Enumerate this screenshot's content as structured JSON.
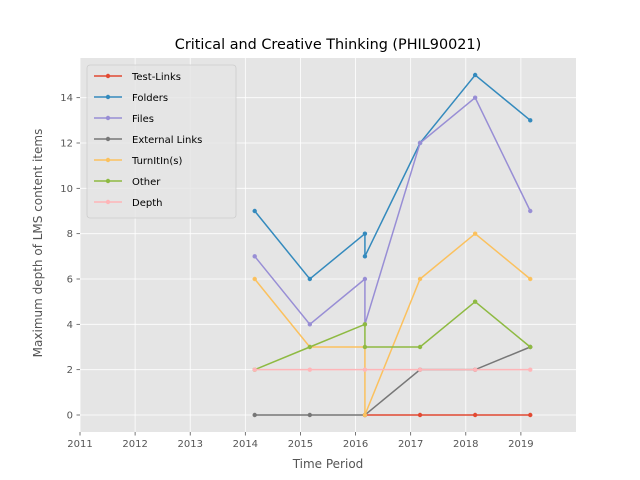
{
  "chart_data": {
    "type": "line",
    "title": "Critical and Creative Thinking (PHIL90021)",
    "xlabel": "Time Period",
    "ylabel": "Maximum depth of LMS content items",
    "xlim": [
      2011,
      2020
    ],
    "ylim": [
      -0.75,
      15.75
    ],
    "xticks": [
      2011,
      2012,
      2013,
      2014,
      2015,
      2016,
      2017,
      2018,
      2019
    ],
    "yticks": [
      0,
      2,
      4,
      6,
      8,
      10,
      12,
      14
    ],
    "grid": true,
    "legend_position": "top-left",
    "series": [
      {
        "name": "Test-Links",
        "color": "#E24A33",
        "points": [
          [
            2016.17,
            0
          ],
          [
            2017.17,
            0
          ],
          [
            2018.17,
            0
          ],
          [
            2019.17,
            0
          ]
        ]
      },
      {
        "name": "Folders",
        "color": "#348ABD",
        "points": [
          [
            2014.17,
            9
          ],
          [
            2015.17,
            6
          ],
          [
            2016.17,
            8
          ],
          [
            2016.17,
            7
          ],
          [
            2017.17,
            12
          ],
          [
            2018.17,
            15
          ],
          [
            2019.17,
            13
          ]
        ]
      },
      {
        "name": "Files",
        "color": "#988ED5",
        "points": [
          [
            2014.17,
            7
          ],
          [
            2015.17,
            4
          ],
          [
            2016.17,
            6
          ],
          [
            2016.17,
            4
          ],
          [
            2017.17,
            12
          ],
          [
            2018.17,
            14
          ],
          [
            2019.17,
            9
          ]
        ]
      },
      {
        "name": "External Links",
        "color": "#777777",
        "points": [
          [
            2014.17,
            0
          ],
          [
            2015.17,
            0
          ],
          [
            2016.17,
            0
          ],
          [
            2017.17,
            2
          ],
          [
            2018.17,
            2
          ],
          [
            2019.17,
            3
          ]
        ]
      },
      {
        "name": "TurnItIn(s)",
        "color": "#FBC15E",
        "points": [
          [
            2014.17,
            6
          ],
          [
            2015.17,
            3
          ],
          [
            2016.17,
            3
          ],
          [
            2016.17,
            0
          ],
          [
            2017.17,
            6
          ],
          [
            2018.17,
            8
          ],
          [
            2019.17,
            6
          ]
        ]
      },
      {
        "name": "Other",
        "color": "#8EBA42",
        "points": [
          [
            2014.17,
            2
          ],
          [
            2015.17,
            3
          ],
          [
            2016.17,
            4
          ],
          [
            2016.17,
            3
          ],
          [
            2017.17,
            3
          ],
          [
            2018.17,
            5
          ],
          [
            2019.17,
            3
          ]
        ]
      },
      {
        "name": "Depth",
        "color": "#FFB5B8",
        "points": [
          [
            2014.17,
            2
          ],
          [
            2015.17,
            2
          ],
          [
            2016.17,
            2
          ],
          [
            2017.17,
            2
          ],
          [
            2018.17,
            2
          ],
          [
            2019.17,
            2
          ]
        ]
      }
    ]
  }
}
